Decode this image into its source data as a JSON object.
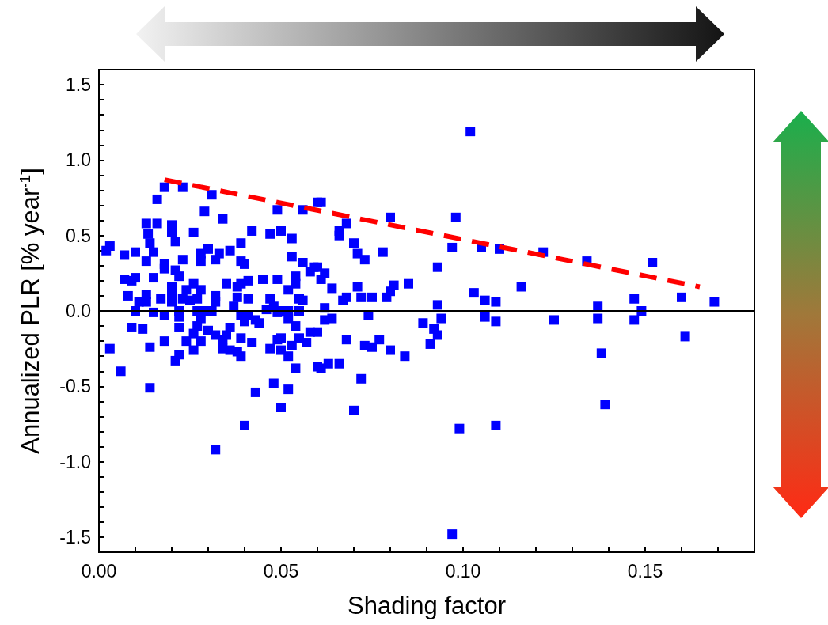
{
  "chart_data": {
    "type": "scatter",
    "xlabel": "Shading factor",
    "ylabel": "Annualized PLR [% year$^{-1}$]",
    "xlim": [
      0,
      0.18
    ],
    "xticks": [
      {
        "value": 0,
        "label": "0.00"
      },
      {
        "value": 0.01,
        "label": null
      },
      {
        "value": 0.02,
        "label": null
      },
      {
        "value": 0.03,
        "label": null
      },
      {
        "value": 0.04,
        "label": null
      },
      {
        "value": 0.05,
        "label": "0.05"
      },
      {
        "value": 0.06,
        "label": null
      },
      {
        "value": 0.07,
        "label": null
      },
      {
        "value": 0.08,
        "label": null
      },
      {
        "value": 0.09,
        "label": null
      },
      {
        "value": 0.1,
        "label": "0.10"
      },
      {
        "value": 0.11,
        "label": null
      },
      {
        "value": 0.12,
        "label": null
      },
      {
        "value": 0.13,
        "label": null
      },
      {
        "value": 0.14,
        "label": null
      },
      {
        "value": 0.15,
        "label": "0.15"
      },
      {
        "value": 0.16,
        "label": null
      },
      {
        "value": 0.17,
        "label": null
      },
      {
        "value": 0.18,
        "label": null
      }
    ],
    "ylim": [
      -1.6,
      1.6
    ],
    "yticks": [
      {
        "value": -1.6,
        "label": null
      },
      {
        "value": -1.5,
        "label": "-1.5"
      },
      {
        "value": -1.4,
        "label": null
      },
      {
        "value": -1.3,
        "label": null
      },
      {
        "value": -1.2,
        "label": null
      },
      {
        "value": -1.1,
        "label": null
      },
      {
        "value": -1.0,
        "label": "-1.0"
      },
      {
        "value": -0.9,
        "label": null
      },
      {
        "value": -0.8,
        "label": null
      },
      {
        "value": -0.7,
        "label": null
      },
      {
        "value": -0.6,
        "label": null
      },
      {
        "value": -0.5,
        "label": "-0.5"
      },
      {
        "value": -0.4,
        "label": null
      },
      {
        "value": -0.3,
        "label": null
      },
      {
        "value": -0.2,
        "label": null
      },
      {
        "value": -0.1,
        "label": null
      },
      {
        "value": 0,
        "label": "0.0"
      },
      {
        "value": 0.1,
        "label": null
      },
      {
        "value": 0.2,
        "label": null
      },
      {
        "value": 0.3,
        "label": null
      },
      {
        "value": 0.4,
        "label": null
      },
      {
        "value": 0.5,
        "label": "0.5"
      },
      {
        "value": 0.6,
        "label": null
      },
      {
        "value": 0.7,
        "label": null
      },
      {
        "value": 0.8,
        "label": null
      },
      {
        "value": 0.9,
        "label": null
      },
      {
        "value": 1.0,
        "label": "1.0"
      },
      {
        "value": 1.1,
        "label": null
      },
      {
        "value": 1.2,
        "label": null
      },
      {
        "value": 1.3,
        "label": null
      },
      {
        "value": 1.4,
        "label": null
      },
      {
        "value": 1.5,
        "label": "1.5"
      },
      {
        "value": 1.6,
        "label": null
      }
    ],
    "marker": "square",
    "ref_lines": [
      {
        "axis": "y",
        "value": 0,
        "label": null,
        "color": "#000000"
      }
    ],
    "series": [
      {
        "color": "#0000ff",
        "x": [
          0.018,
          0.023,
          0.016,
          0.031,
          0.029,
          0.034,
          0.049,
          0.056,
          0.06,
          0.061,
          0.013,
          0.016,
          0.02,
          0.0135,
          0.02,
          0.026,
          0.042,
          0.047,
          0.05,
          0.053,
          0.021,
          0.014,
          0.015,
          0.002,
          0.003,
          0.007,
          0.01,
          0.013,
          0.018,
          0.018,
          0.023,
          0.028,
          0.03,
          0.028,
          0.032,
          0.033,
          0.036,
          0.039,
          0.039,
          0.04,
          0.053,
          0.056,
          0.059,
          0.058,
          0.062,
          0.007,
          0.009,
          0.01,
          0.015,
          0.021,
          0.022,
          0.008,
          0.013,
          0.011,
          0.013,
          0.01,
          0.017,
          0.015,
          0.02,
          0.02,
          0.02,
          0.026,
          0.028,
          0.024,
          0.023,
          0.025,
          0.027,
          0.022,
          0.022,
          0.018,
          0.027,
          0.029,
          0.028,
          0.032,
          0.032,
          0.031,
          0.035,
          0.038,
          0.039,
          0.041,
          0.038,
          0.041,
          0.037,
          0.045,
          0.049,
          0.052,
          0.054,
          0.054,
          0.056,
          0.055,
          0.061,
          0.047,
          0.046,
          0.048,
          0.049,
          0.05,
          0.052,
          0.055,
          0.039,
          0.041,
          0.043,
          0.062,
          0.003,
          0.006,
          0.009,
          0.012,
          0.014,
          0.014,
          0.018,
          0.022,
          0.022,
          0.021,
          0.024,
          0.026,
          0.026,
          0.028,
          0.027,
          0.03,
          0.032,
          0.034,
          0.034,
          0.036,
          0.035,
          0.036,
          0.038,
          0.039,
          0.039,
          0.042,
          0.04,
          0.044,
          0.032,
          0.04,
          0.043,
          0.048,
          0.052,
          0.05,
          0.047,
          0.049,
          0.05,
          0.05,
          0.052,
          0.053,
          0.054,
          0.052,
          0.054,
          0.055,
          0.057,
          0.058,
          0.06,
          0.06,
          0.061,
          0.062,
          0.102,
          0.068,
          0.066,
          0.066,
          0.08,
          0.098,
          0.07,
          0.071,
          0.073,
          0.078,
          0.097,
          0.105,
          0.11,
          0.122,
          0.093,
          0.06,
          0.064,
          0.068,
          0.067,
          0.071,
          0.072,
          0.075,
          0.081,
          0.08,
          0.079,
          0.085,
          0.103,
          0.106,
          0.109,
          0.116,
          0.093,
          0.064,
          0.074,
          0.089,
          0.094,
          0.106,
          0.109,
          0.125,
          0.068,
          0.073,
          0.075,
          0.077,
          0.08,
          0.084,
          0.063,
          0.066,
          0.072,
          0.07,
          0.092,
          0.093,
          0.091,
          0.099,
          0.109,
          0.097,
          0.134,
          0.152,
          0.137,
          0.147,
          0.149,
          0.16,
          0.169,
          0.137,
          0.147,
          0.138,
          0.139,
          0.161
        ],
        "values": [
          0.82,
          0.82,
          0.74,
          0.77,
          0.66,
          0.61,
          0.67,
          0.67,
          0.72,
          0.72,
          0.58,
          0.58,
          0.57,
          0.51,
          0.52,
          0.52,
          0.53,
          0.51,
          0.53,
          0.48,
          0.46,
          0.45,
          0.39,
          0.4,
          0.43,
          0.37,
          0.39,
          0.33,
          0.31,
          0.28,
          0.34,
          0.38,
          0.41,
          0.33,
          0.34,
          0.38,
          0.4,
          0.45,
          0.33,
          0.31,
          0.36,
          0.32,
          0.29,
          0.26,
          0.25,
          0.21,
          0.2,
          0.22,
          0.22,
          0.27,
          0.23,
          0.1,
          0.11,
          0.06,
          0.06,
          0.0,
          0.08,
          -0.01,
          0.16,
          0.12,
          0.06,
          0.18,
          0.14,
          0.14,
          0.08,
          0.07,
          0.08,
          0.0,
          -0.04,
          -0.03,
          0.0,
          0.0,
          -0.05,
          0.1,
          0.06,
          0.0,
          0.18,
          0.16,
          0.18,
          0.2,
          0.09,
          0.08,
          0.03,
          0.21,
          0.21,
          0.14,
          0.18,
          0.23,
          0.07,
          0.08,
          0.21,
          0.08,
          0.01,
          0.03,
          -0.01,
          0.0,
          0.0,
          0.0,
          -0.03,
          -0.03,
          -0.06,
          0.02,
          -0.25,
          -0.4,
          -0.11,
          -0.12,
          -0.24,
          -0.51,
          -0.2,
          -0.11,
          -0.29,
          -0.33,
          -0.2,
          -0.15,
          -0.26,
          -0.2,
          -0.1,
          -0.13,
          -0.16,
          -0.19,
          -0.25,
          -0.11,
          -0.16,
          -0.26,
          -0.27,
          -0.3,
          -0.18,
          -0.21,
          -0.07,
          -0.08,
          -0.92,
          -0.76,
          -0.54,
          -0.48,
          -0.52,
          -0.64,
          -0.25,
          -0.19,
          -0.18,
          -0.26,
          -0.3,
          -0.23,
          -0.38,
          -0.05,
          -0.1,
          -0.18,
          -0.21,
          -0.14,
          -0.14,
          -0.37,
          -0.38,
          -0.06,
          1.19,
          0.58,
          0.53,
          0.5,
          0.62,
          0.62,
          0.45,
          0.38,
          0.34,
          0.39,
          0.42,
          0.42,
          0.41,
          0.39,
          0.29,
          0.29,
          0.15,
          0.09,
          0.07,
          0.16,
          0.09,
          0.09,
          0.17,
          0.13,
          0.09,
          0.18,
          0.12,
          0.07,
          0.06,
          0.16,
          0.04,
          -0.05,
          -0.03,
          -0.08,
          -0.05,
          -0.04,
          -0.07,
          -0.06,
          -0.19,
          -0.23,
          -0.24,
          -0.19,
          -0.26,
          -0.3,
          -0.35,
          -0.35,
          -0.45,
          -0.66,
          -0.12,
          -0.16,
          -0.22,
          -0.78,
          -0.76,
          -1.48,
          0.33,
          0.32,
          0.03,
          0.08,
          0.0,
          0.09,
          0.06,
          -0.05,
          -0.06,
          -0.28,
          -0.62,
          -0.17
        ]
      },
      {
        "type": "line",
        "color": "#ff0000",
        "line_style": "dashed",
        "marker": "none",
        "x": [
          0.018,
          0.165
        ],
        "values": [
          0.87,
          0.16
        ]
      }
    ]
  }
}
